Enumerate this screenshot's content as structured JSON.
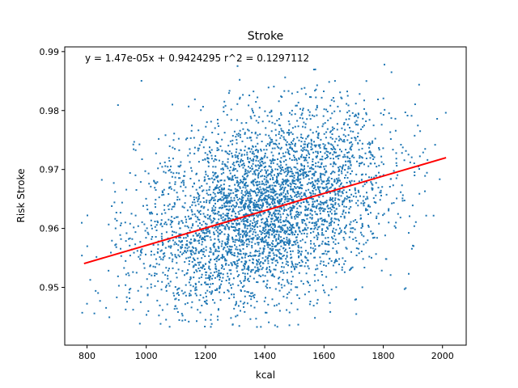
{
  "chart_data": {
    "type": "scatter",
    "title": "Stroke",
    "xlabel": "kcal",
    "ylabel": "Risk Stroke",
    "xlim": [
      725,
      2080
    ],
    "ylim": [
      0.9402,
      0.9908
    ],
    "xticks": [
      800,
      1000,
      1200,
      1400,
      1600,
      1800,
      2000
    ],
    "yticks": [
      0.95,
      0.96,
      0.97,
      0.98,
      0.99
    ],
    "xtick_labels": [
      "800",
      "1000",
      "1200",
      "1400",
      "1600",
      "1800",
      "2000"
    ],
    "ytick_labels": [
      "0.95",
      "0.96",
      "0.97",
      "0.98",
      "0.99"
    ],
    "grid": false,
    "annotation": "y = 1.47e-05x + 0.9424295  r^2 = 0.1297112",
    "scatter": {
      "color": "#1f77b4",
      "x_center": 1400,
      "x_std": 210,
      "x_range": [
        780,
        2015
      ],
      "y_std_residual": 0.0079
    },
    "fit": {
      "slope": 1.47e-05,
      "intercept": 0.9424295,
      "x_range": [
        790,
        2012
      ],
      "color": "#ff0000"
    }
  }
}
